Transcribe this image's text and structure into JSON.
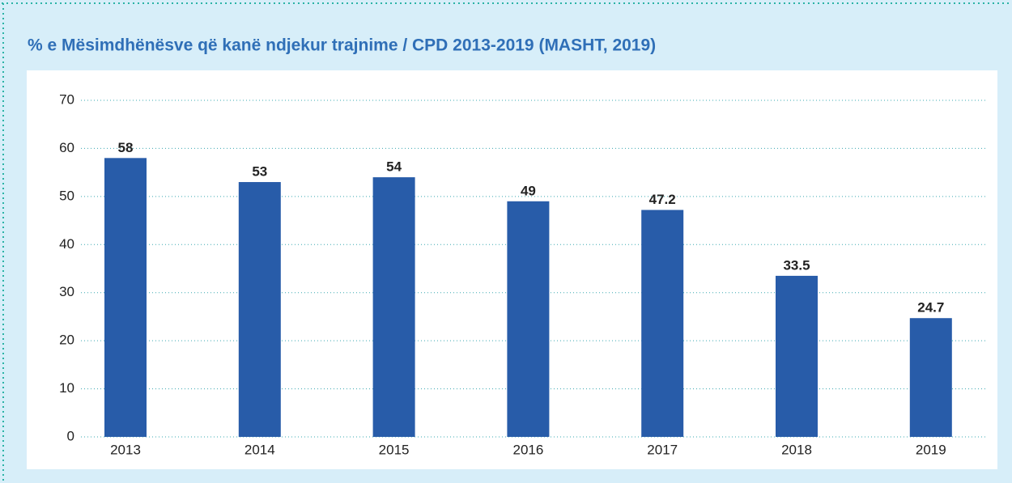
{
  "chart_data": {
    "type": "bar",
    "title": "% e Mësimdhënësve që kanë ndjekur trajnime / CPD 2013-2019 (MASHT, 2019)",
    "categories": [
      "2013",
      "2014",
      "2015",
      "2016",
      "2017",
      "2018",
      "2019"
    ],
    "values": [
      58,
      53,
      54,
      49,
      47.2,
      33.5,
      24.7
    ],
    "color": "#285ca9",
    "ylim": [
      0,
      70
    ],
    "yticks": [
      0,
      10,
      20,
      30,
      40,
      50,
      60,
      70
    ],
    "grid": true
  }
}
